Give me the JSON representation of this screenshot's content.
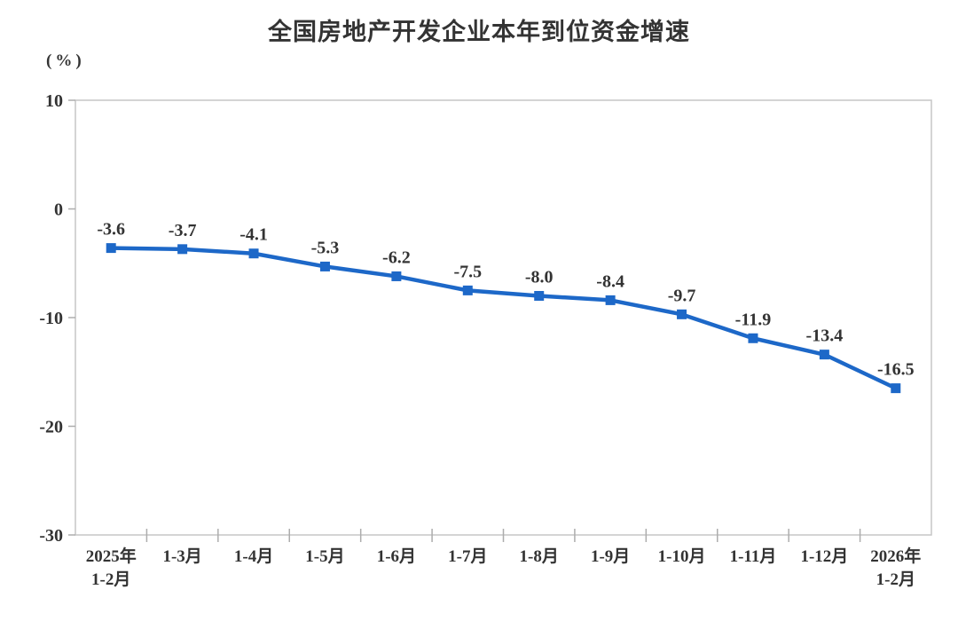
{
  "chart_data": {
    "type": "line",
    "title": "全国房地产开发企业本年到位资金增速",
    "unit_label": "(%)",
    "categories": [
      [
        "2025年",
        "1-2月"
      ],
      [
        "1-3月"
      ],
      [
        "1-4月"
      ],
      [
        "1-5月"
      ],
      [
        "1-6月"
      ],
      [
        "1-7月"
      ],
      [
        "1-8月"
      ],
      [
        "1-9月"
      ],
      [
        "1-10月"
      ],
      [
        "1-11月"
      ],
      [
        "1-12月"
      ],
      [
        "2026年",
        "1-2月"
      ]
    ],
    "series": [
      {
        "name": "本年到位资金增速",
        "values": [
          -3.6,
          -3.7,
          -4.1,
          -5.3,
          -6.2,
          -7.5,
          -8.0,
          -8.4,
          -9.7,
          -11.9,
          -13.4,
          -16.5
        ],
        "labels": [
          "-3.6",
          "-3.7",
          "-4.1",
          "-5.3",
          "-6.2",
          "-7.5",
          "-8.0",
          "-8.4",
          "-9.7",
          "-11.9",
          "-13.4",
          "-16.5"
        ],
        "marker": "square"
      }
    ],
    "yticks": [
      "10",
      "0",
      "-10",
      "-20",
      "-30"
    ],
    "ytick_values": [
      10,
      0,
      -10,
      -20,
      -30
    ],
    "ylim": [
      -30,
      10
    ],
    "grid": false,
    "legend_position": "none",
    "colors": {
      "line": "#1D68C8",
      "marker": "#1D68C8",
      "text": "#333333",
      "axis_border": "#C6C6C6",
      "tick": "#ADADAD",
      "background": "#FFFFFF"
    }
  }
}
